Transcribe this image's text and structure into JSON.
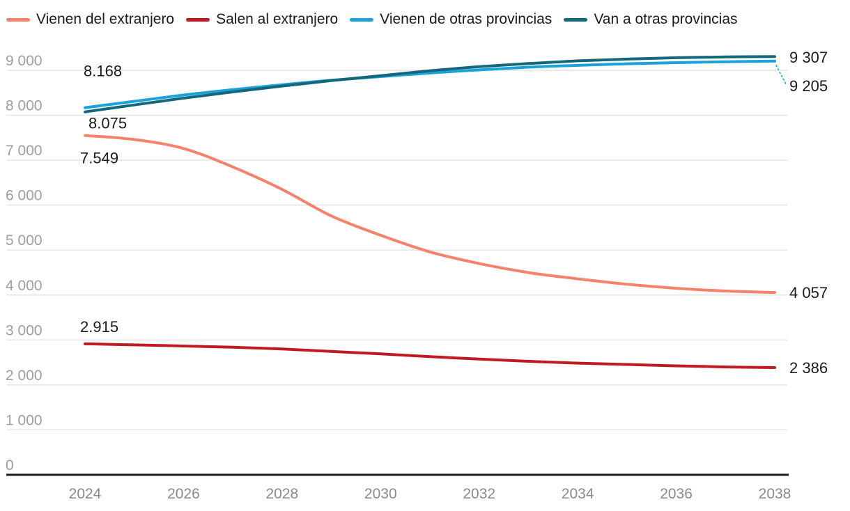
{
  "chart_data": {
    "type": "line",
    "title": "",
    "xlabel": "",
    "ylabel": "",
    "x": [
      2024,
      2025,
      2026,
      2027,
      2028,
      2029,
      2030,
      2031,
      2032,
      2033,
      2034,
      2035,
      2036,
      2037,
      2038
    ],
    "x_tick_labels": [
      "2024",
      "2026",
      "2028",
      "2030",
      "2032",
      "2034",
      "2036",
      "2038"
    ],
    "y_tick_labels": [
      "0",
      "1 000",
      "2 000",
      "3 000",
      "4 000",
      "5 000",
      "6 000",
      "7 000",
      "8 000",
      "9 000"
    ],
    "ylim": [
      0,
      9400
    ],
    "xlim": [
      2024,
      2038
    ],
    "grid": true,
    "legend_position": "top",
    "series": [
      {
        "name": "Vienen del extranjero",
        "color": "#F5826B",
        "start_label": "7.549",
        "end_label": "4 057",
        "values": [
          7549,
          7460,
          7260,
          6850,
          6350,
          5760,
          5330,
          4960,
          4700,
          4500,
          4360,
          4240,
          4150,
          4090,
          4057
        ]
      },
      {
        "name": "Salen al extranjero",
        "color": "#C11B21",
        "start_label": "2.915",
        "end_label": "2 386",
        "values": [
          2915,
          2890,
          2865,
          2840,
          2800,
          2745,
          2690,
          2630,
          2575,
          2525,
          2485,
          2455,
          2425,
          2400,
          2386
        ]
      },
      {
        "name": "Vienen de otras provincias",
        "color": "#1CA2DB",
        "start_label": "8.168",
        "end_label": "9 205",
        "values": [
          8168,
          8310,
          8450,
          8570,
          8680,
          8780,
          8860,
          8940,
          9010,
          9070,
          9110,
          9145,
          9170,
          9190,
          9205
        ]
      },
      {
        "name": "Van a otras provincias",
        "color": "#15677B",
        "start_label": "8.075",
        "end_label": "9 307",
        "values": [
          8075,
          8230,
          8380,
          8520,
          8650,
          8770,
          8880,
          8990,
          9080,
          9150,
          9210,
          9250,
          9280,
          9297,
          9307
        ]
      }
    ],
    "colors": {
      "grid": "#E3E3E3",
      "axis_line": "#1B1B1B",
      "y_tick_text": "#9E9E9E",
      "x_tick_text": "#8A8A8A",
      "value_label_text": "#1A1A1A",
      "background": "#FFFFFF"
    }
  }
}
